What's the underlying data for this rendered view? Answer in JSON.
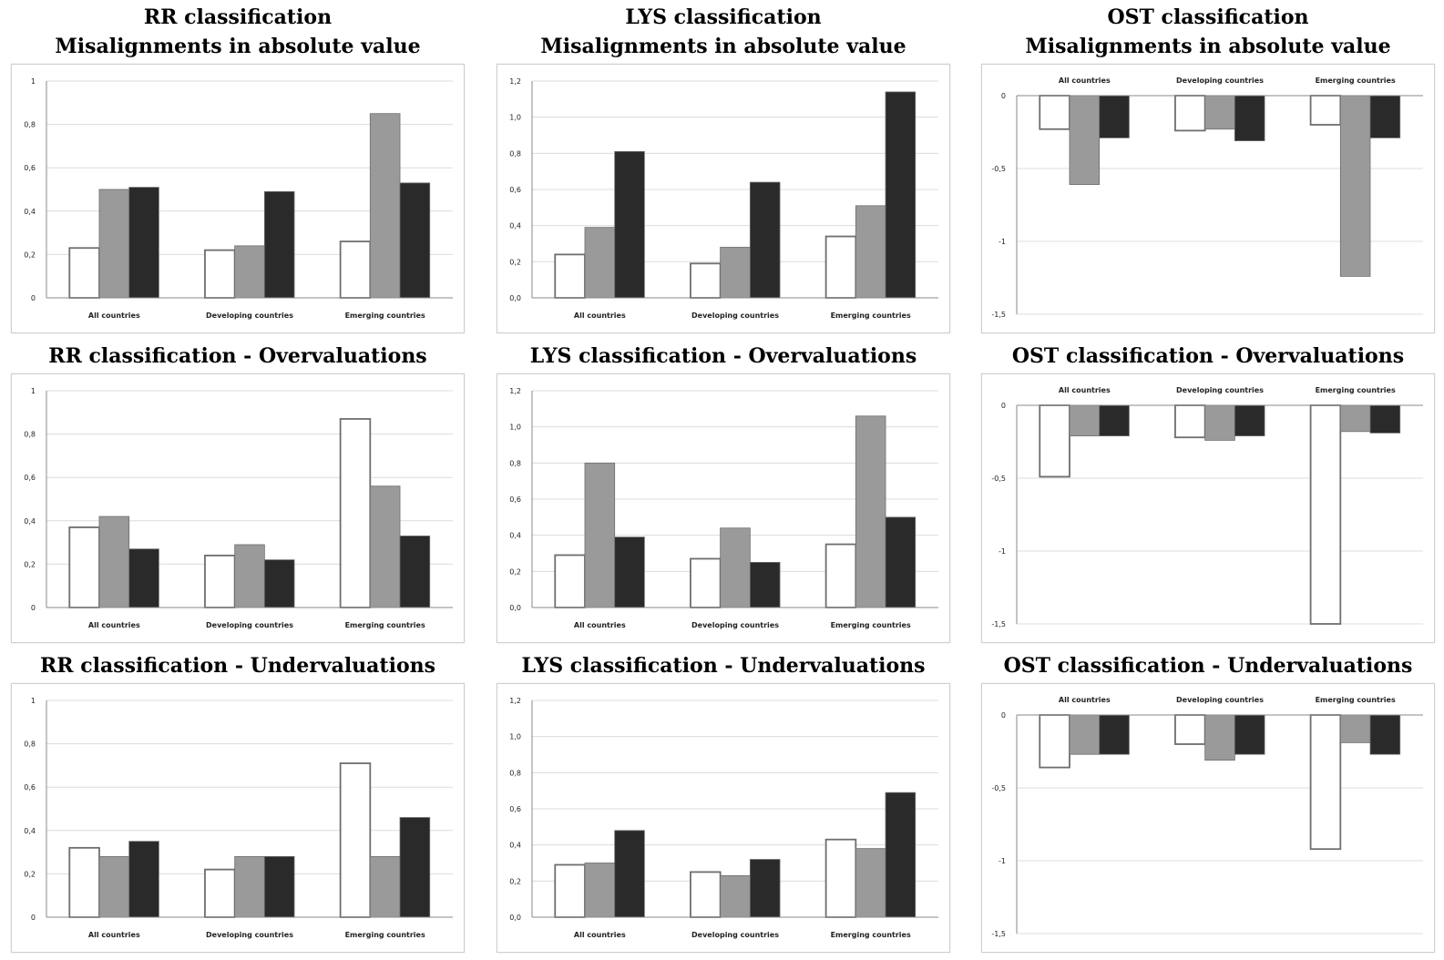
{
  "colors": {
    "series1": "#ffffff",
    "series2": "#9a9a9a",
    "series3": "#2a2a2a",
    "gridline": "#dcdcdc",
    "axis": "#8a8a8a"
  },
  "chart_data": [
    {
      "type": "bar",
      "title_lines": [
        "RR classification",
        "Misalignments in absolute value"
      ],
      "categories": [
        "All countries",
        "Developing countries",
        "Emerging countries"
      ],
      "yticks": [
        "0",
        "0,2",
        "0,4",
        "0,6",
        "0,8",
        "1"
      ],
      "ylim": [
        0,
        1
      ],
      "grid": true,
      "series": [
        {
          "values": [
            0.23,
            0.22,
            0.26
          ]
        },
        {
          "values": [
            0.5,
            0.24,
            0.85
          ]
        },
        {
          "values": [
            0.51,
            0.49,
            0.53
          ]
        }
      ]
    },
    {
      "type": "bar",
      "title_lines": [
        "LYS classification",
        "Misalignments in absolute value"
      ],
      "categories": [
        "All countries",
        "Developing countries",
        "Emerging countries"
      ],
      "yticks": [
        "0,0",
        "0,2",
        "0,4",
        "0,6",
        "0,8",
        "1,0",
        "1,2"
      ],
      "ylim": [
        0,
        1.2
      ],
      "grid": true,
      "series": [
        {
          "values": [
            0.24,
            0.19,
            0.34
          ]
        },
        {
          "values": [
            0.39,
            0.28,
            0.51
          ]
        },
        {
          "values": [
            0.81,
            0.64,
            1.14
          ]
        }
      ]
    },
    {
      "type": "bar",
      "title_lines": [
        "OST classification",
        "Misalignments in absolute value"
      ],
      "categories": [
        "All countries",
        "Developing countries",
        "Emerging countries"
      ],
      "yticks": [
        "0",
        "-0,5",
        "-1",
        "-1,5"
      ],
      "ylim": [
        -1.5,
        0
      ],
      "grid": true,
      "categories_on_top": true,
      "series": [
        {
          "values": [
            -0.23,
            -0.24,
            -0.2
          ]
        },
        {
          "values": [
            -0.61,
            -0.23,
            -1.24
          ]
        },
        {
          "values": [
            -0.29,
            -0.31,
            -0.29
          ]
        }
      ]
    },
    {
      "type": "bar",
      "title_lines": [
        "RR classification - Overvaluations"
      ],
      "categories": [
        "All countries",
        "Developing countries",
        "Emerging countries"
      ],
      "yticks": [
        "0",
        "0,2",
        "0,4",
        "0,6",
        "0,8",
        "1"
      ],
      "ylim": [
        0,
        1
      ],
      "grid": true,
      "series": [
        {
          "values": [
            0.37,
            0.24,
            0.87
          ]
        },
        {
          "values": [
            0.42,
            0.29,
            0.56
          ]
        },
        {
          "values": [
            0.27,
            0.22,
            0.33
          ]
        }
      ]
    },
    {
      "type": "bar",
      "title_lines": [
        "LYS classification - Overvaluations"
      ],
      "categories": [
        "All countries",
        "Developing countries",
        "Emerging countries"
      ],
      "yticks": [
        "0,0",
        "0,2",
        "0,4",
        "0,6",
        "0,8",
        "1,0",
        "1,2"
      ],
      "ylim": [
        0,
        1.2
      ],
      "grid": true,
      "series": [
        {
          "values": [
            0.29,
            0.27,
            0.35
          ]
        },
        {
          "values": [
            0.8,
            0.44,
            1.06
          ]
        },
        {
          "values": [
            0.39,
            0.25,
            0.5
          ]
        }
      ]
    },
    {
      "type": "bar",
      "title_lines": [
        "OST classification - Overvaluations"
      ],
      "categories": [
        "All countries",
        "Developing countries",
        "Emerging countries"
      ],
      "yticks": [
        "0",
        "-0,5",
        "-1",
        "-1,5"
      ],
      "ylim": [
        -1.5,
        0
      ],
      "grid": true,
      "categories_on_top": true,
      "series": [
        {
          "values": [
            -0.49,
            -0.22,
            -1.5
          ]
        },
        {
          "values": [
            -0.21,
            -0.24,
            -0.18
          ]
        },
        {
          "values": [
            -0.21,
            -0.21,
            -0.19
          ]
        }
      ]
    },
    {
      "type": "bar",
      "title_lines": [
        "RR classification - Undervaluations"
      ],
      "categories": [
        "All countries",
        "Developing countries",
        "Emerging countries"
      ],
      "yticks": [
        "0",
        "0,2",
        "0,4",
        "0,6",
        "0,8",
        "1"
      ],
      "ylim": [
        0,
        1
      ],
      "grid": true,
      "series": [
        {
          "values": [
            0.32,
            0.22,
            0.71
          ]
        },
        {
          "values": [
            0.28,
            0.28,
            0.28
          ]
        },
        {
          "values": [
            0.35,
            0.28,
            0.46
          ]
        }
      ]
    },
    {
      "type": "bar",
      "title_lines": [
        "LYS classification - Undervaluations"
      ],
      "categories": [
        "All countries",
        "Developing countries",
        "Emerging countries"
      ],
      "yticks": [
        "0,0",
        "0,2",
        "0,4",
        "0,6",
        "0,8",
        "1,0",
        "1,2"
      ],
      "ylim": [
        0,
        1.2
      ],
      "grid": true,
      "series": [
        {
          "values": [
            0.29,
            0.25,
            0.43
          ]
        },
        {
          "values": [
            0.3,
            0.23,
            0.38
          ]
        },
        {
          "values": [
            0.48,
            0.32,
            0.69
          ]
        }
      ]
    },
    {
      "type": "bar",
      "title_lines": [
        "OST classification - Undervaluations"
      ],
      "categories": [
        "All countries",
        "Developing countries",
        "Emerging countries"
      ],
      "yticks": [
        "0",
        "-0,5",
        "-1",
        "-1,5"
      ],
      "ylim": [
        -1.5,
        0
      ],
      "grid": true,
      "categories_on_top": true,
      "series": [
        {
          "values": [
            -0.36,
            -0.2,
            -0.92
          ]
        },
        {
          "values": [
            -0.27,
            -0.31,
            -0.19
          ]
        },
        {
          "values": [
            -0.27,
            -0.27,
            -0.27
          ]
        }
      ]
    }
  ]
}
